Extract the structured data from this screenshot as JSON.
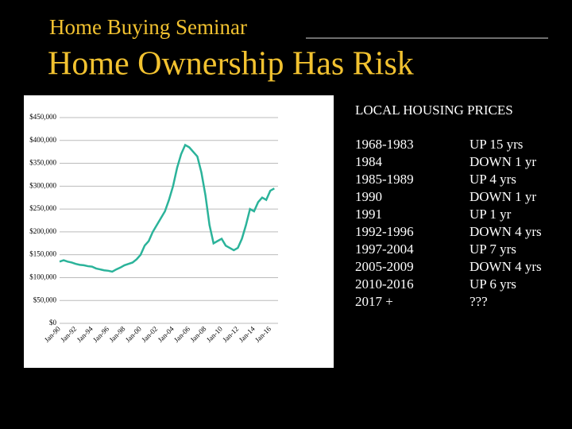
{
  "header": {
    "subtitle": "Home Buying Seminar",
    "title": "Home Ownership Has Risk"
  },
  "chart_data": {
    "type": "line",
    "color": "#2bb39a",
    "grid": true,
    "categories": [
      "Jan-90",
      null,
      null,
      null,
      "Jan-92",
      null,
      null,
      null,
      "Jan-94",
      null,
      null,
      null,
      "Jan-96",
      null,
      null,
      null,
      "Jan-98",
      null,
      null,
      null,
      "Jan-00",
      null,
      null,
      null,
      "Jan-02",
      null,
      null,
      null,
      "Jan-04",
      null,
      null,
      null,
      "Jan-06",
      null,
      null,
      null,
      "Jan-08",
      null,
      null,
      null,
      "Jan-10",
      null,
      null,
      null,
      "Jan-12",
      null,
      null,
      null,
      "Jan-14",
      null,
      null,
      null,
      "Jan-16",
      null
    ],
    "values": [
      135000,
      138000,
      135000,
      133000,
      130000,
      128000,
      127000,
      125000,
      124000,
      120000,
      118000,
      116000,
      115000,
      113000,
      118000,
      122000,
      127000,
      130000,
      133000,
      140000,
      150000,
      170000,
      180000,
      200000,
      215000,
      230000,
      245000,
      270000,
      300000,
      340000,
      370000,
      390000,
      385000,
      375000,
      365000,
      330000,
      280000,
      215000,
      175000,
      180000,
      185000,
      170000,
      165000,
      160000,
      165000,
      185000,
      215000,
      250000,
      245000,
      265000,
      275000,
      270000,
      290000,
      295000
    ],
    "ylim": [
      0,
      450000
    ],
    "yticks": [
      {
        "value": 0,
        "label": "$0"
      },
      {
        "value": 50000,
        "label": "$50,000"
      },
      {
        "value": 100000,
        "label": "$100,000"
      },
      {
        "value": 150000,
        "label": "$150,000"
      },
      {
        "value": 200000,
        "label": "$200,000"
      },
      {
        "value": 250000,
        "label": "$250,000"
      },
      {
        "value": 300000,
        "label": "$300,000"
      },
      {
        "value": 350000,
        "label": "$350,000"
      },
      {
        "value": 400000,
        "label": "$400,000"
      },
      {
        "value": 450000,
        "label": "$450,000"
      }
    ]
  },
  "table": {
    "heading": "LOCAL HOUSING PRICES",
    "rows": [
      [
        "1968-1983",
        "UP 15 yrs"
      ],
      [
        "1984",
        "DOWN 1 yr"
      ],
      [
        "1985-1989",
        "UP 4 yrs"
      ],
      [
        "1990",
        "DOWN 1 yr"
      ],
      [
        "1991",
        "UP 1 yr"
      ],
      [
        "1992-1996",
        "DOWN 4 yrs"
      ],
      [
        "1997-2004",
        "UP 7 yrs"
      ],
      [
        "2005-2009",
        "DOWN 4 yrs"
      ],
      [
        "2010-2016",
        "UP 6 yrs"
      ],
      [
        "2017 +",
        "???"
      ]
    ]
  }
}
